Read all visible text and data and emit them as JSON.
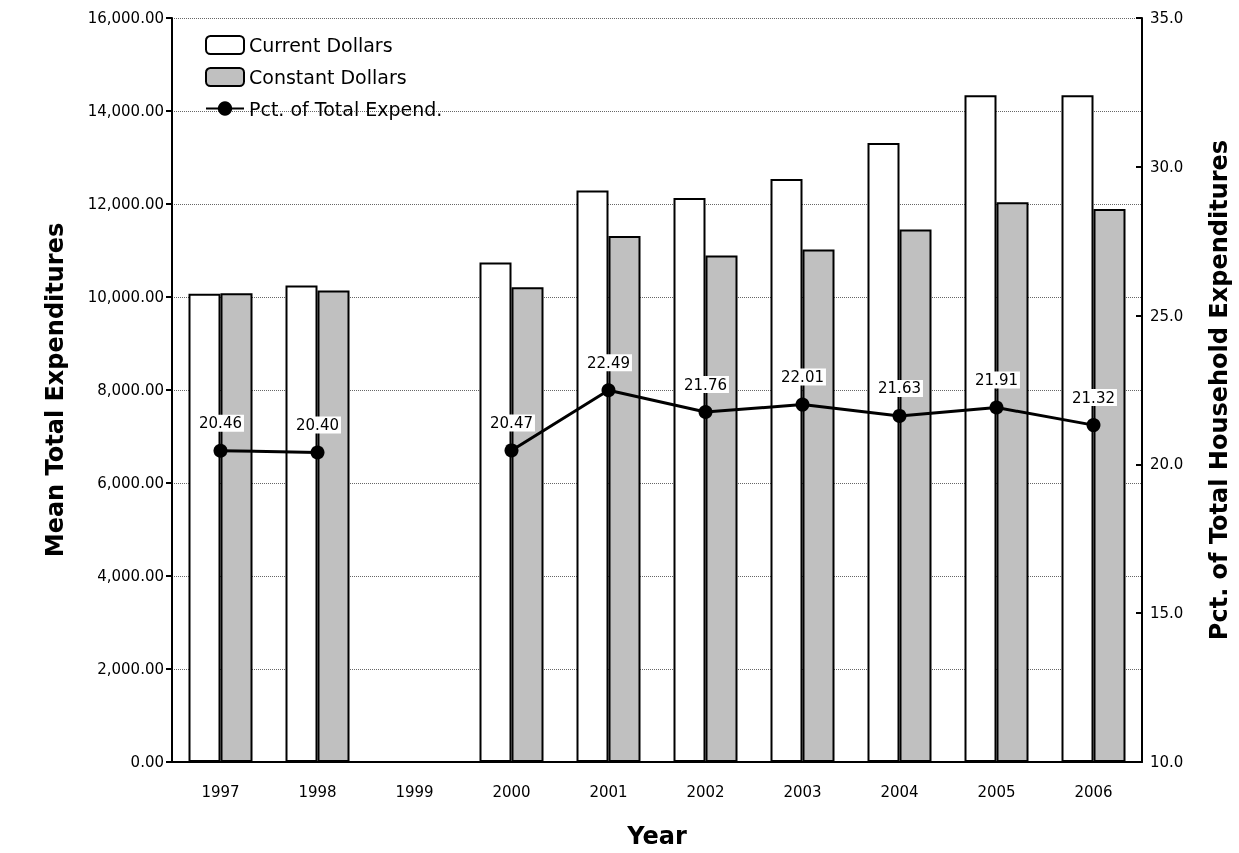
{
  "chart_data": {
    "type": "bar",
    "xlabel": "Year",
    "ylabel": "Mean Total Expenditures",
    "y2label": "Pct. of Total Household Expenditures",
    "categories": [
      "1997",
      "1998",
      "1999",
      "2000",
      "2001",
      "2002",
      "2003",
      "2004",
      "2005",
      "2006"
    ],
    "series": [
      {
        "name": "Current Dollars",
        "color": "#ffffff",
        "values": [
          10070,
          10250,
          null,
          10740,
          12290,
          12130,
          12540,
          13310,
          14340,
          14340
        ]
      },
      {
        "name": "Constant Dollars",
        "color": "#c0c0c0",
        "values": [
          10080,
          10140,
          null,
          10210,
          11310,
          10890,
          11020,
          11450,
          12040,
          11890
        ]
      },
      {
        "name": "Pct. of Total Expend.",
        "type": "line",
        "axis": "y2",
        "color": "#000000",
        "marker": "circle",
        "values": [
          20.46,
          20.4,
          null,
          20.47,
          22.49,
          21.76,
          22.01,
          21.63,
          21.91,
          21.32
        ],
        "value_labels": [
          "20.46",
          "20.40",
          null,
          "20.47",
          "22.49",
          "21.76",
          "22.01",
          "21.63",
          "21.91",
          "21.32"
        ]
      }
    ],
    "ylim": [
      0,
      16000
    ],
    "yticks": [
      {
        "value": 0,
        "label": "0.00"
      },
      {
        "value": 2000,
        "label": "2,000.00"
      },
      {
        "value": 4000,
        "label": "4,000.00"
      },
      {
        "value": 6000,
        "label": "6,000.00"
      },
      {
        "value": 8000,
        "label": "8,000.00"
      },
      {
        "value": 10000,
        "label": "10,000.00"
      },
      {
        "value": 12000,
        "label": "12,000.00"
      },
      {
        "value": 14000,
        "label": "14,000.00"
      },
      {
        "value": 16000,
        "label": "16,000.00"
      }
    ],
    "y2lim": [
      10,
      35
    ],
    "y2ticks": [
      {
        "value": 10,
        "label": "10.0"
      },
      {
        "value": 15,
        "label": "15.0"
      },
      {
        "value": 20,
        "label": "20.0"
      },
      {
        "value": 25,
        "label": "25.0"
      },
      {
        "value": 30,
        "label": "30.0"
      },
      {
        "value": 35,
        "label": "35.0"
      }
    ],
    "grid": "y",
    "legend": "top left"
  }
}
